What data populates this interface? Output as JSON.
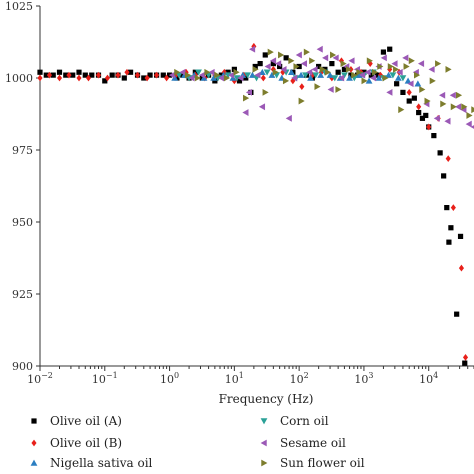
{
  "chart_data": {
    "type": "scatter",
    "title": "",
    "xlabel": "Frequency (Hz)",
    "ylabel": "",
    "x_scale": "log",
    "xlim": [
      0.01,
      50000
    ],
    "ylim": [
      900,
      1025
    ],
    "x_ticks": [
      {
        "value": 0.01,
        "base": "10",
        "exp": "−2"
      },
      {
        "value": 0.1,
        "base": "10",
        "exp": "−1"
      },
      {
        "value": 1,
        "base": "10",
        "exp": "0"
      },
      {
        "value": 10,
        "base": "10",
        "exp": "1"
      },
      {
        "value": 100,
        "base": "10",
        "exp": "2"
      },
      {
        "value": 1000,
        "base": "10",
        "exp": "3"
      },
      {
        "value": 10000,
        "base": "10",
        "exp": "4"
      }
    ],
    "y_ticks": [
      "900",
      "925",
      "950",
      "975",
      "1000",
      "1025"
    ],
    "grid": false,
    "legend_position": "bottom",
    "series": [
      {
        "name": "Olive oil (A)",
        "marker": "square",
        "color": "#000000",
        "x": [
          0.01,
          0.0125,
          0.016,
          0.02,
          0.025,
          0.032,
          0.04,
          0.05,
          0.063,
          0.08,
          0.1,
          0.13,
          0.16,
          0.2,
          0.25,
          0.32,
          0.4,
          0.5,
          0.63,
          0.8,
          1,
          1.3,
          1.6,
          2,
          2.5,
          3.2,
          4,
          5,
          6.3,
          8,
          10,
          12,
          15,
          18,
          21,
          25,
          30,
          40,
          50,
          63,
          80,
          100,
          130,
          160,
          200,
          250,
          320,
          400,
          500,
          630,
          800,
          1000,
          1300,
          1600,
          2000,
          2500,
          3200,
          4000,
          5000,
          6000,
          7000,
          8000,
          9000,
          10000,
          12000,
          15000,
          17000,
          19000,
          20500,
          22000,
          27000,
          31000,
          36000
        ],
        "y": [
          1002,
          1001,
          1001,
          1002,
          1001,
          1001,
          1002,
          1001,
          1001,
          1001,
          999,
          1001,
          1001,
          1000,
          1002,
          1001,
          1000,
          1001,
          1001,
          1001,
          1001,
          1000,
          1001,
          1000,
          1002,
          1000,
          1001,
          999,
          1001,
          1002,
          1003,
          999,
          1000,
          995,
          1004,
          1005,
          1008,
          1005,
          1004,
          1007,
          1002,
          1004,
          1001,
          1000,
          1004,
          1003,
          1005,
          1002,
          1003,
          1001,
          1001,
          1002,
          1001,
          1001,
          1009,
          1010,
          998,
          995,
          992,
          993,
          988,
          986,
          987,
          983,
          980,
          974,
          966,
          955,
          943,
          948,
          918,
          945,
          901
        ]
      },
      {
        "name": "Olive oil (B)",
        "marker": "diamond",
        "color": "#e8201a",
        "x": [
          0.01,
          0.014,
          0.02,
          0.028,
          0.04,
          0.056,
          0.08,
          0.11,
          0.16,
          0.22,
          0.32,
          0.45,
          0.63,
          0.9,
          1.25,
          1.8,
          2.5,
          3.5,
          5,
          7,
          10,
          14,
          20,
          28,
          40,
          56,
          80,
          110,
          160,
          220,
          320,
          450,
          630,
          900,
          1250,
          1800,
          2500,
          3500,
          5000,
          7000,
          10000,
          14000,
          20000,
          24000,
          32000,
          37000
        ],
        "y": [
          1000,
          1001,
          1000,
          1001,
          1000,
          1000,
          1001,
          1000,
          1001,
          1002,
          1001,
          1000,
          1001,
          1000,
          1001,
          1002,
          1001,
          1000,
          1001,
          1002,
          999,
          1001,
          1011,
          1000,
          1003,
          1002,
          999,
          997,
          1001,
          1002,
          1000,
          1006,
          1003,
          1002,
          1005,
          1001,
          1003,
          1002,
          995,
          990,
          983,
          986,
          972,
          955,
          934,
          903
        ]
      },
      {
        "name": "Nigella sativa oil",
        "marker": "triangle-up",
        "color": "#2b7ec1",
        "x": [
          1.2,
          1.7,
          2.4,
          3.4,
          4.8,
          6.8,
          9.5,
          13.5,
          19,
          27,
          38,
          54,
          76,
          107,
          150,
          215,
          300,
          430,
          600,
          850,
          1200,
          1700,
          2400,
          3400,
          4800,
          6800
        ],
        "y": [
          1000,
          1001,
          1001,
          1000,
          1000,
          1001,
          1000,
          1001,
          1001,
          1002,
          1001,
          1000,
          1002,
          1001,
          1000,
          1001,
          1001,
          1000,
          1000,
          1001,
          999,
          1000,
          1001,
          1000,
          999,
          998
        ]
      },
      {
        "name": "Corn oil",
        "marker": "triangle-down",
        "color": "#2aa197",
        "x": [
          1.4,
          2,
          2.8,
          4,
          5.6,
          8,
          11,
          16,
          22,
          32,
          45,
          63,
          90,
          125,
          180,
          250,
          355,
          500,
          710,
          1000,
          1400,
          2000,
          2800,
          4000
        ],
        "y": [
          1001,
          1000,
          1002,
          1001,
          1000,
          1001,
          1000,
          1001,
          1000,
          1002,
          1001,
          1002,
          1000,
          1001,
          1001,
          1002,
          1000,
          1001,
          1000,
          1001,
          1002,
          1000,
          1001,
          1000
        ]
      },
      {
        "name": "Sesame oil",
        "marker": "triangle-left",
        "color": "#9b59b6",
        "x": [
          1.1,
          1.6,
          2.2,
          3.2,
          4.5,
          6.3,
          9,
          12.5,
          15,
          17,
          19,
          23,
          27,
          33,
          40,
          48,
          58,
          70,
          85,
          100,
          120,
          145,
          175,
          210,
          255,
          310,
          370,
          450,
          540,
          650,
          790,
          950,
          1150,
          1400,
          1700,
          2050,
          2500,
          3000,
          3600,
          4400,
          5300,
          6400,
          7700,
          9300,
          11200,
          13500,
          16300,
          19700,
          23800,
          28700,
          34700,
          41900,
          50000
        ],
        "y": [
          1001,
          1002,
          1000,
          1001,
          1002,
          1000,
          1001,
          1000,
          988,
          995,
          1010,
          1001,
          990,
          1004,
          1006,
          1005,
          1003,
          986,
          1000,
          1008,
          1005,
          1002,
          1003,
          1010,
          1007,
          996,
          1007,
          1000,
          1004,
          1006,
          1003,
          1001,
          1002,
          1000,
          1004,
          1007,
          995,
          1005,
          1002,
          1007,
          998,
          1002,
          1005,
          991,
          1003,
          986,
          994,
          985,
          994,
          990,
          989,
          984,
          983
        ]
      },
      {
        "name": "Sun flower oil",
        "marker": "triangle-right",
        "color": "#7d7d2d",
        "x": [
          1.3,
          1.9,
          2.7,
          3.8,
          5.4,
          7.6,
          10.7,
          15,
          21,
          30,
          36,
          43,
          52,
          62,
          75,
          90,
          108,
          130,
          157,
          190,
          228,
          275,
          330,
          400,
          480,
          580,
          700,
          840,
          1010,
          1220,
          1470,
          1770,
          2130,
          2570,
          3100,
          3730,
          4500,
          5420,
          6530,
          7870,
          9480,
          11400,
          13800,
          16600,
          20000,
          24100,
          29000,
          35000,
          42100,
          50000
        ],
        "y": [
          1002,
          1001,
          1000,
          1002,
          1001,
          1000,
          1002,
          993,
          1003,
          995,
          1009,
          1002,
          1008,
          999,
          1006,
          1004,
          992,
          1009,
          1006,
          997,
          1003,
          1002,
          1008,
          996,
          1005,
          1003,
          1001,
          1002,
          999,
          1006,
          1002,
          1004,
          1000,
          1004,
          1003,
          989,
          1004,
          1006,
          1001,
          996,
          992,
          999,
          1005,
          991,
          1003,
          990,
          994,
          990,
          987,
          989
        ]
      }
    ]
  }
}
